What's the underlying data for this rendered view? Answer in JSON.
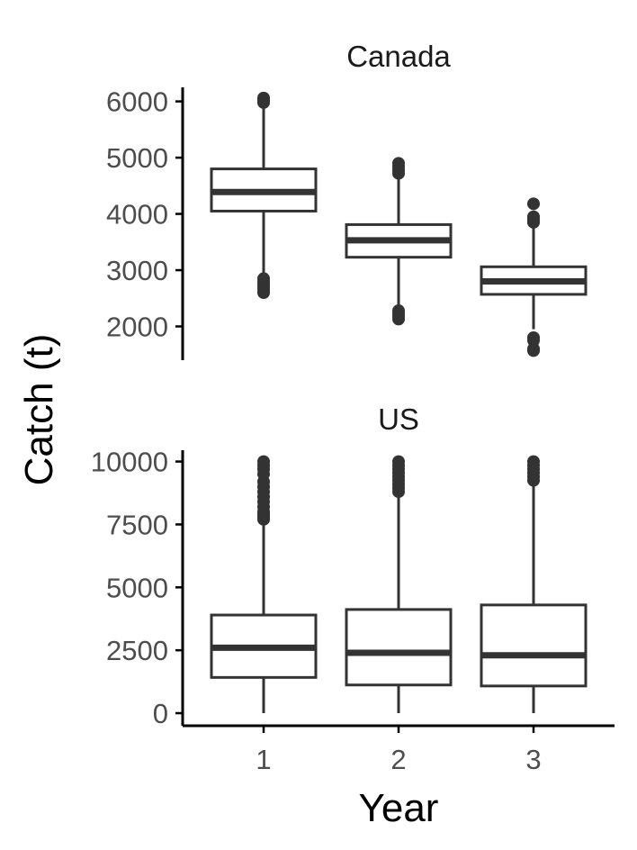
{
  "chart_data": {
    "type": "boxplot",
    "xlabel": "Year",
    "ylabel": "Catch (t)",
    "categories": [
      "1",
      "2",
      "3"
    ],
    "colors": {
      "box_line": "#333333",
      "axis": "#000000",
      "tick_text": "#4d4d4d"
    },
    "grid": false,
    "panels": [
      {
        "title": "Canada",
        "ylim": [
          1400,
          6250
        ],
        "yticks": [
          2000,
          3000,
          4000,
          5000,
          6000
        ],
        "ytick_labels": [
          "2000",
          "3000",
          "4000",
          "5000",
          "6000"
        ],
        "boxes": [
          {
            "x": "1",
            "lower_whisker": 2900,
            "q1": 4050,
            "median": 4390,
            "q3": 4800,
            "upper_whisker": 5950,
            "outliers": [
              2600,
              2650,
              2700,
              2750,
              2800,
              2850,
              5980,
              6000,
              6030,
              6060
            ]
          },
          {
            "x": "2",
            "lower_whisker": 2350,
            "q1": 3230,
            "median": 3530,
            "q3": 3810,
            "upper_whisker": 4650,
            "outliers": [
              2130,
              2180,
              2230,
              2280,
              4720,
              4780,
              4840,
              4900
            ]
          },
          {
            "x": "3",
            "lower_whisker": 1950,
            "q1": 2570,
            "median": 2800,
            "q3": 3060,
            "upper_whisker": 3780,
            "outliers": [
              1570,
              1600,
              1750,
              1800,
              3850,
              3900,
              3950,
              4180
            ]
          }
        ]
      },
      {
        "title": "US",
        "ylim": [
          -500,
          10450
        ],
        "yticks": [
          0,
          2500,
          5000,
          7500,
          10000
        ],
        "ytick_labels": [
          "0",
          "2500",
          "5000",
          "7500",
          "10000"
        ],
        "boxes": [
          {
            "x": "1",
            "lower_whisker": 0,
            "q1": 1420,
            "median": 2600,
            "q3": 3900,
            "upper_whisker": 7600,
            "outliers": [
              7700,
              7800,
              7900,
              8000,
              8200,
              8400,
              8600,
              8800,
              9000,
              9200,
              9500,
              9700,
              9850,
              10000
            ]
          },
          {
            "x": "2",
            "lower_whisker": 0,
            "q1": 1120,
            "median": 2400,
            "q3": 4120,
            "upper_whisker": 8700,
            "outliers": [
              8800,
              8950,
              9100,
              9250,
              9400,
              9550,
              9700,
              9850,
              10000
            ]
          },
          {
            "x": "3",
            "lower_whisker": 0,
            "q1": 1080,
            "median": 2300,
            "q3": 4300,
            "upper_whisker": 9150,
            "outliers": [
              9250,
              9400,
              9550,
              9700,
              9850,
              10000
            ]
          }
        ]
      }
    ]
  }
}
